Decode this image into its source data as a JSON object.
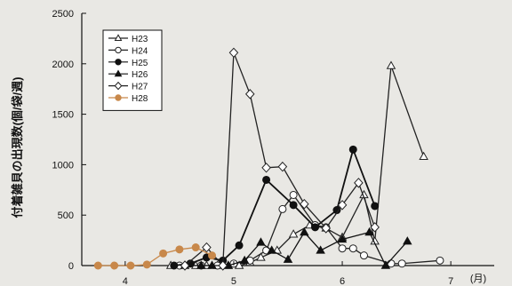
{
  "chart_data": {
    "type": "line",
    "title": "",
    "ylabel": "付着雑貝の出現数(個/袋/週)",
    "xlabel": "(月)",
    "ylim": [
      0,
      2500
    ],
    "xlim": [
      3.6,
      7.4
    ],
    "yticks": [
      0,
      500,
      1000,
      1500,
      2000,
      2500
    ],
    "xticks": [
      4,
      5,
      6,
      7
    ],
    "xtick_labels": [
      "4",
      "5",
      "6",
      "7"
    ],
    "grid": false,
    "legend_position": "top-left",
    "series": [
      {
        "name": "H23",
        "marker": "triangle-open",
        "color": "#222222",
        "x": [
          4.42,
          4.65,
          4.75,
          4.85,
          4.95,
          5.05,
          5.15,
          5.25,
          5.4,
          5.55,
          5.7,
          5.85,
          6.0,
          6.2,
          6.3,
          6.45,
          6.75
        ],
        "y": [
          0,
          0,
          0,
          0,
          0,
          0,
          30,
          80,
          150,
          310,
          400,
          370,
          280,
          700,
          240,
          1980,
          1080
        ]
      },
      {
        "name": "H24",
        "marker": "circle-open",
        "color": "#222222",
        "x": [
          4.5,
          4.7,
          4.85,
          5.0,
          5.15,
          5.3,
          5.45,
          5.55,
          5.75,
          5.85,
          6.0,
          6.1,
          6.2,
          6.45,
          6.55,
          6.9
        ],
        "y": [
          0,
          0,
          0,
          20,
          50,
          150,
          560,
          700,
          400,
          380,
          170,
          170,
          100,
          20,
          20,
          50
        ]
      },
      {
        "name": "H25",
        "marker": "circle-filled",
        "color": "#111111",
        "x": [
          4.45,
          4.6,
          4.75,
          4.9,
          5.05,
          5.3,
          5.55,
          5.75,
          5.95,
          6.1,
          6.3
        ],
        "y": [
          0,
          20,
          80,
          50,
          200,
          850,
          600,
          380,
          550,
          1150,
          590
        ]
      },
      {
        "name": "H26",
        "marker": "triangle-filled",
        "color": "#111111",
        "x": [
          4.55,
          4.7,
          4.8,
          4.95,
          5.1,
          5.25,
          5.35,
          5.5,
          5.65,
          5.8,
          6.0,
          6.25,
          6.4,
          6.6
        ],
        "y": [
          0,
          0,
          0,
          0,
          50,
          230,
          150,
          60,
          330,
          150,
          260,
          330,
          0,
          240
        ]
      },
      {
        "name": "H27",
        "marker": "diamond-open",
        "color": "#222222",
        "x": [
          4.55,
          4.75,
          4.9,
          5.0,
          5.15,
          5.3,
          5.45,
          5.65,
          5.85,
          6.0,
          6.15,
          6.3
        ],
        "y": [
          0,
          180,
          0,
          2110,
          1700,
          970,
          980,
          610,
          370,
          600,
          820,
          380
        ]
      },
      {
        "name": "H28",
        "marker": "circle-filled",
        "color": "#c8884a",
        "x": [
          3.75,
          3.9,
          4.05,
          4.2,
          4.35,
          4.5,
          4.65,
          4.8
        ],
        "y": [
          0,
          0,
          0,
          10,
          120,
          160,
          180,
          100
        ]
      }
    ]
  }
}
